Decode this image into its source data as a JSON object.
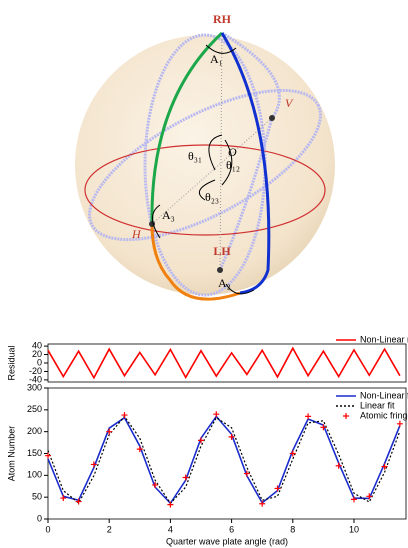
{
  "diagram": {
    "rh": "RH",
    "lh": "LH",
    "h": "H",
    "v": "V",
    "o": "O",
    "a1": "A₁",
    "a2": "A₂",
    "a3": "A₃",
    "t12": "θ₁₂",
    "t23": "θ₂₃",
    "t31": "θ₃₁"
  },
  "chart_data": [
    {
      "type": "line",
      "ylabel": "Residual",
      "xlim": [
        0,
        11.7
      ],
      "ylim": [
        -45,
        45
      ],
      "yticks": [
        -40,
        -20,
        0,
        20,
        40
      ],
      "legend": "top-right",
      "series": [
        {
          "name": "Non-Linear residual",
          "color": "#ff0000",
          "x": [
            0,
            0.5,
            1,
            1.5,
            2,
            2.5,
            3,
            3.5,
            4,
            4.5,
            5,
            5.5,
            6,
            6.5,
            7,
            7.5,
            8,
            8.5,
            9,
            9.5,
            10,
            10.5,
            11,
            11.5
          ],
          "values": [
            30,
            -32,
            28,
            -35,
            33,
            -30,
            25,
            -28,
            32,
            -34,
            29,
            -31,
            24,
            -27,
            30,
            -33,
            35,
            -30,
            28,
            -32,
            31,
            -29,
            33,
            -30
          ]
        }
      ]
    },
    {
      "type": "line",
      "ylabel": "Atom Number",
      "xlabel": "Quarter wave plate angle (rad)",
      "xlim": [
        0,
        11.7
      ],
      "ylim": [
        0,
        300
      ],
      "xticks": [
        0,
        2,
        4,
        6,
        8,
        10
      ],
      "yticks": [
        0,
        50,
        100,
        150,
        200,
        250,
        300
      ],
      "legend": "top-right",
      "series": [
        {
          "name": "Non-Linear fit",
          "color": "#1a2ccc",
          "dash": false,
          "x": [
            0,
            0.5,
            1,
            1.5,
            2,
            2.5,
            3,
            3.5,
            4,
            4.5,
            5,
            5.5,
            6,
            6.5,
            7,
            7.5,
            8,
            8.5,
            9,
            9.5,
            10,
            10.5,
            11,
            11.5
          ],
          "values": [
            138,
            52,
            43,
            118,
            208,
            232,
            167,
            73,
            36,
            89,
            185,
            235,
            194,
            99,
            37,
            65,
            157,
            229,
            215,
            128,
            48,
            47,
            127,
            214
          ]
        },
        {
          "name": "Linear fit",
          "color": "#000000",
          "dash": true,
          "x": [
            0,
            0.5,
            1,
            1.5,
            2,
            2.5,
            3,
            3.5,
            4,
            4.5,
            5,
            5.5,
            6,
            6.5,
            7,
            7.5,
            8,
            8.5,
            9,
            9.5,
            10,
            10.5,
            11,
            11.5
          ],
          "values": [
            157,
            65,
            37,
            99,
            193,
            235,
            185,
            89,
            36,
            73,
            167,
            232,
            209,
            118,
            43,
            52,
            137,
            220,
            225,
            148,
            59,
            39,
            107,
            201
          ]
        },
        {
          "name": "Atomic fringes",
          "color": "#ff0000",
          "marker": "+",
          "x": [
            0,
            0.5,
            1,
            1.5,
            2,
            2.5,
            3,
            3.5,
            4,
            4.5,
            5,
            5.5,
            6,
            6.5,
            7,
            7.5,
            8,
            8.5,
            9,
            9.5,
            10,
            10.5,
            11,
            11.5
          ],
          "values": [
            145,
            48,
            40,
            125,
            200,
            238,
            160,
            78,
            33,
            95,
            180,
            240,
            188,
            104,
            35,
            70,
            150,
            235,
            210,
            122,
            45,
            52,
            120,
            218
          ]
        }
      ]
    }
  ]
}
